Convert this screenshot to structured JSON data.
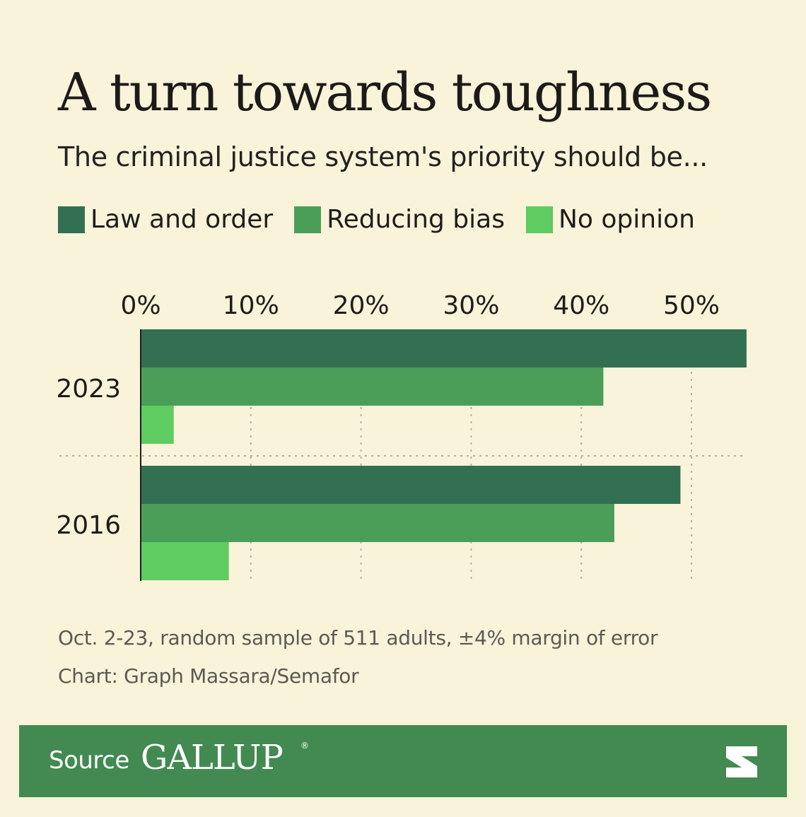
{
  "header": {
    "title": "A turn towards toughness",
    "subtitle": "The criminal justice system's priority should be..."
  },
  "legend": [
    {
      "label": "Law and order",
      "color": "#336f52"
    },
    {
      "label": "Reducing bias",
      "color": "#4a9e58"
    },
    {
      "label": "No opinion",
      "color": "#5ecc60"
    }
  ],
  "chart_data": {
    "type": "bar",
    "orientation": "horizontal",
    "categories": [
      "2023",
      "2016"
    ],
    "series": [
      {
        "name": "Law and order",
        "values": [
          55,
          49
        ]
      },
      {
        "name": "Reducing bias",
        "values": [
          42,
          43
        ]
      },
      {
        "name": "No opinion",
        "values": [
          3,
          8
        ]
      }
    ],
    "xticks": [
      "0%",
      "10%",
      "20%",
      "30%",
      "40%",
      "50%"
    ],
    "xlim": [
      0,
      55
    ],
    "grid": true,
    "legend_position": "top"
  },
  "notes": {
    "line1": "Oct. 2-23, random sample of 511 adults, ±4% margin of error",
    "line2": "Chart: Graph Massara/Semafor"
  },
  "footer": {
    "source_label": "Source",
    "brand": "GALLUP",
    "brand_mark": "®",
    "logo_icon": "semafor-s-logo-icon"
  }
}
